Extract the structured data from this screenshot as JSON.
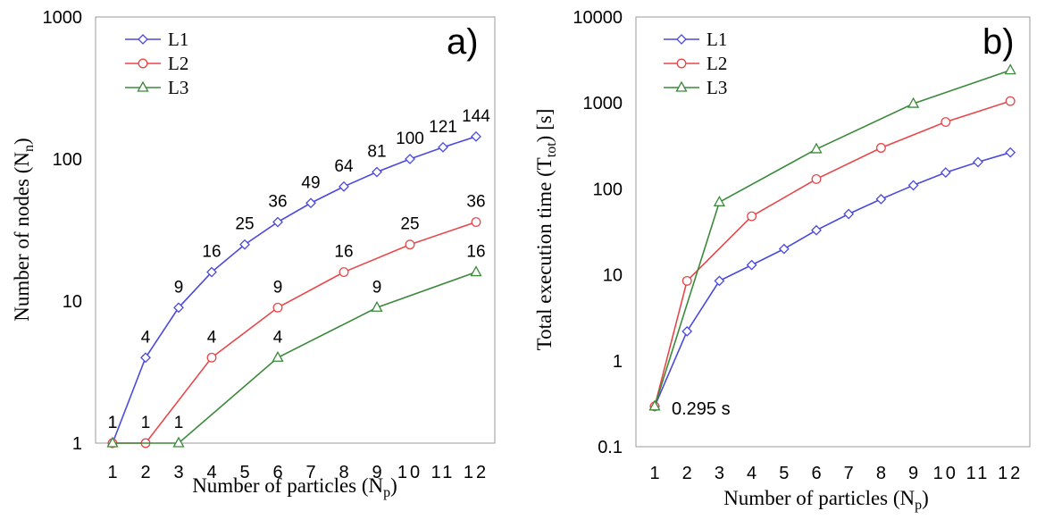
{
  "chart_data": [
    {
      "type": "line",
      "panel_label": "a)",
      "ylabel": "Number of nodes (N",
      "ylabel_sub": "n",
      "ylabel_close": ")",
      "xlabel": "Number of particles (N",
      "xlabel_sub": "p",
      "xlabel_close": ")",
      "yscale": "log",
      "ylim": [
        1,
        1000
      ],
      "yticks": [
        "1",
        "10",
        "100",
        "1000"
      ],
      "x_categories": [
        "1",
        "2",
        "3",
        "4",
        "5",
        "6",
        "7",
        "8",
        "9",
        "10",
        "11",
        "12"
      ],
      "legend": "top-left",
      "series": [
        {
          "name": "L1",
          "color": "#4a4adc",
          "marker": "diamond",
          "x": [
            1,
            2,
            3,
            4,
            5,
            6,
            7,
            8,
            9,
            10,
            11,
            12
          ],
          "y": [
            1,
            4,
            9,
            16,
            25,
            36,
            49,
            64,
            81,
            100,
            121,
            144
          ],
          "labels": [
            "1",
            "4",
            "9",
            "16",
            "25",
            "36",
            "49",
            "64",
            "81",
            "100",
            "121",
            "144"
          ]
        },
        {
          "name": "L2",
          "color": "#e8474a",
          "marker": "circle",
          "x": [
            1,
            2,
            4,
            6,
            8,
            10,
            12
          ],
          "y": [
            1,
            1,
            4,
            9,
            16,
            25,
            36
          ],
          "labels": [
            "1",
            "1",
            "4",
            "9",
            "16",
            "25",
            "36"
          ]
        },
        {
          "name": "L3",
          "color": "#3a8a3a",
          "marker": "triangle",
          "x": [
            1,
            3,
            6,
            9,
            12
          ],
          "y": [
            1,
            1,
            4,
            9,
            16
          ],
          "labels": [
            "",
            "1",
            "4",
            "9",
            "16"
          ]
        }
      ]
    },
    {
      "type": "line",
      "panel_label": "b)",
      "ylabel": "Total execution time (T",
      "ylabel_sub": "tot",
      "ylabel_close": ") [s]",
      "xlabel": "Number of particles (N",
      "xlabel_sub": "p",
      "xlabel_close": ")",
      "yscale": "log",
      "ylim": [
        0.1,
        10000
      ],
      "yticks": [
        "0.1",
        "1",
        "10",
        "100",
        "1000",
        "10000"
      ],
      "x_categories": [
        "1",
        "2",
        "3",
        "4",
        "5",
        "6",
        "7",
        "8",
        "9",
        "10",
        "11",
        "12"
      ],
      "legend": "top-left",
      "annotation": "0.295 s",
      "series": [
        {
          "name": "L1",
          "color": "#4a4adc",
          "marker": "diamond",
          "x": [
            1,
            2,
            3,
            4,
            5,
            6,
            7,
            8,
            9,
            10,
            11,
            12
          ],
          "y": [
            0.295,
            2.2,
            8.5,
            13,
            20,
            33,
            51,
            76,
            110,
            155,
            205,
            265
          ]
        },
        {
          "name": "L2",
          "color": "#e8474a",
          "marker": "circle",
          "x": [
            1,
            2,
            4,
            6,
            8,
            10,
            12
          ],
          "y": [
            0.295,
            8.5,
            48,
            130,
            300,
            600,
            1050
          ]
        },
        {
          "name": "L3",
          "color": "#3a8a3a",
          "marker": "triangle",
          "x": [
            1,
            3,
            6,
            9,
            12
          ],
          "y": [
            0.295,
            70,
            290,
            980,
            2400
          ]
        }
      ]
    }
  ]
}
